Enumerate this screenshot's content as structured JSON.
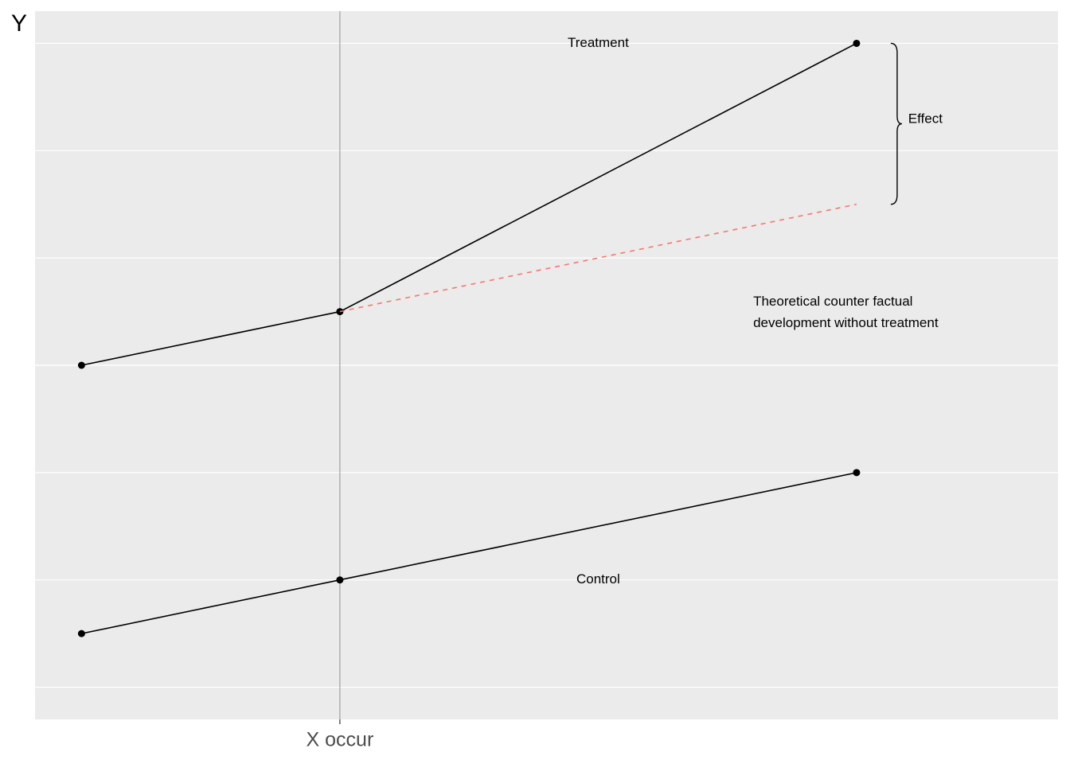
{
  "chart_data": {
    "type": "line",
    "ylabel": "Y",
    "xlim": [
      -0.18,
      3.78
    ],
    "xticks": [
      {
        "value": 1,
        "label": "X occur"
      }
    ],
    "ylim": [
      0.7,
      7.3
    ],
    "yticks": [
      1,
      2,
      3,
      4,
      5,
      6,
      7
    ],
    "grid": true,
    "series": [
      {
        "x": [
          0,
          1,
          3
        ],
        "values": [
          4,
          4.5,
          7
        ],
        "color": "#000000",
        "dashed": false,
        "points": true
      },
      {
        "x": [
          0,
          1,
          3
        ],
        "values": [
          1.5,
          2,
          3
        ],
        "color": "#000000",
        "dashed": false,
        "points": true
      },
      {
        "x": [
          1,
          3
        ],
        "values": [
          4.5,
          5.5
        ],
        "color": "#f8766d",
        "dashed": true,
        "points": false
      }
    ],
    "annotations": [
      {
        "lines": [
          "Treatment"
        ],
        "x": 2,
        "y": 7,
        "align": "center"
      },
      {
        "lines": [
          "Control"
        ],
        "x": 2,
        "y": 2,
        "align": "center"
      },
      {
        "lines": [
          "Theoretical counter factual",
          "development without treatment"
        ],
        "x": 2.6,
        "y": 4.49,
        "align": "left"
      },
      {
        "lines": [
          "Effect"
        ],
        "x": 3.2,
        "y": 6.29,
        "align": "left"
      }
    ]
  }
}
